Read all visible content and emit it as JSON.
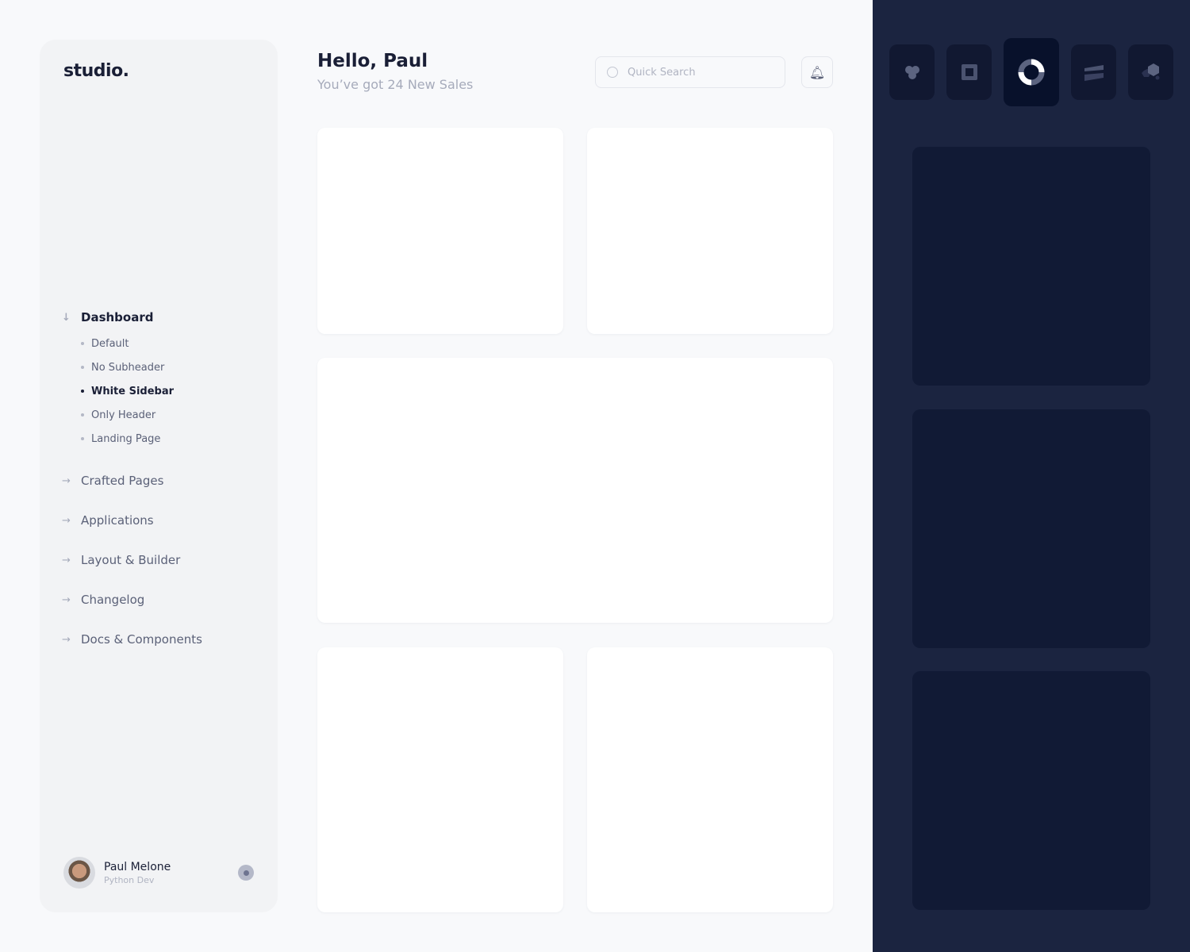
{
  "sidebar": {
    "logo": "studio.",
    "dashboard": {
      "label": "Dashboard",
      "icon": "arrow-down-icon",
      "items": [
        {
          "label": "Default",
          "active": false
        },
        {
          "label": "No Subheader",
          "active": false
        },
        {
          "label": "White Sidebar",
          "active": true
        },
        {
          "label": "Only Header",
          "active": false
        },
        {
          "label": "Landing Page",
          "active": false
        }
      ]
    },
    "items": [
      {
        "label": "Crafted Pages",
        "icon": "arrow-right-icon"
      },
      {
        "label": "Applications",
        "icon": "arrow-right-icon"
      },
      {
        "label": "Layout & Builder",
        "icon": "arrow-right-icon"
      },
      {
        "label": "Changelog",
        "icon": "arrow-right-icon"
      },
      {
        "label": "Docs & Components",
        "icon": "arrow-right-icon"
      }
    ],
    "user": {
      "name": "Paul Melone",
      "role": "Python Dev"
    }
  },
  "header": {
    "title": "Hello, Paul",
    "subtitle": "You’ve got 24 New Sales",
    "search_placeholder": "Quick Search",
    "search_value": ""
  },
  "right_panel": {
    "tiles": [
      "flower-logo-icon",
      "square-logo-icon",
      "ring-logo-icon",
      "stripes-logo-icon",
      "hexagon-logo-icon"
    ],
    "active_tile": 2
  },
  "colors": {
    "accent_dark": "#1b2440",
    "text": "#1a1f36",
    "muted": "#a6abbb"
  }
}
